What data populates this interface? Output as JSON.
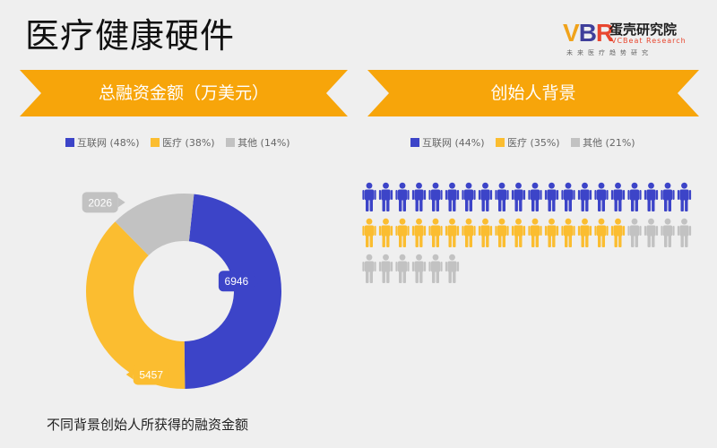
{
  "page": {
    "title": "医疗健康硬件",
    "caption": "不同背景创始人所获得的融资金额"
  },
  "logo": {
    "mark_v": "V",
    "mark_b": "B",
    "mark_r": "R",
    "name_cn": "蛋壳研究院",
    "name_en": "VCBeat Research",
    "tagline": "未来医疗趋势研究"
  },
  "left_panel": {
    "banner": "总融资金额（万美元）"
  },
  "right_panel": {
    "banner": "创始人背景"
  },
  "colors": {
    "internet": "#3c44c8",
    "medical": "#fbbd30",
    "other": "#c2c2c2",
    "banner": "#f7a50a"
  },
  "icon": "person-icon",
  "chart_data": [
    {
      "type": "pie",
      "variant": "donut",
      "title": "总融资金额（万美元）",
      "legend": [
        {
          "name": "互联网",
          "label": "互联网 (48%)"
        },
        {
          "name": "医疗",
          "label": "医疗 (38%)"
        },
        {
          "name": "其他",
          "label": "其他 (14%)"
        }
      ],
      "categories": [
        "互联网",
        "医疗",
        "其他"
      ],
      "values": [
        6946,
        5457,
        2026
      ],
      "percents": [
        48,
        38,
        14
      ],
      "data_labels": [
        "6946",
        "5457",
        "2026"
      ],
      "legend_position": "top"
    },
    {
      "type": "pictograph",
      "title": "创始人背景",
      "legend": [
        {
          "name": "互联网",
          "label": "互联网 (44%)"
        },
        {
          "name": "医疗",
          "label": "医疗 (35%)"
        },
        {
          "name": "其他",
          "label": "其他 (21%)"
        }
      ],
      "categories": [
        "互联网",
        "医疗",
        "其他"
      ],
      "counts": [
        20,
        16,
        10
      ],
      "percents": [
        44,
        35,
        21
      ],
      "icons_per_row": 20,
      "legend_position": "top"
    }
  ]
}
